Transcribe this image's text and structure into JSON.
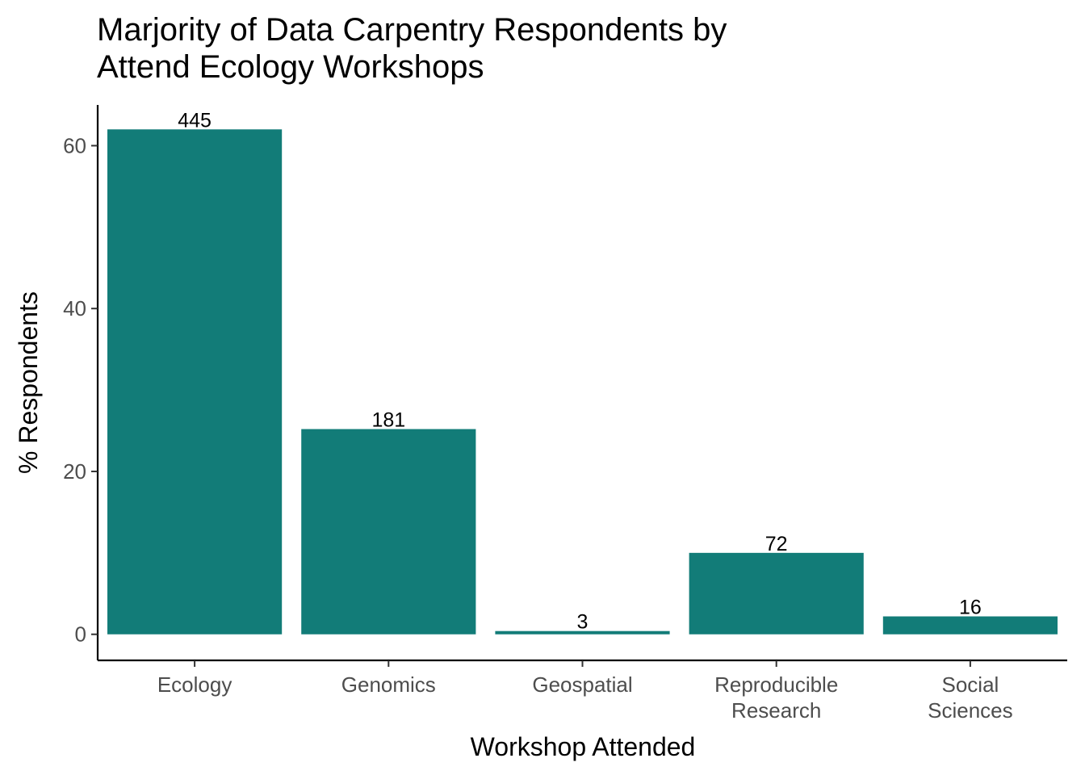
{
  "chart_data": {
    "type": "bar",
    "title_lines": [
      "Marjority of Data Carpentry Respondents by",
      "Attend Ecology Workshops"
    ],
    "xlabel": "Workshop Attended",
    "ylabel": "% Respondents",
    "categories": [
      [
        "Ecology"
      ],
      [
        "Genomics"
      ],
      [
        "Geospatial"
      ],
      [
        "Reproducible",
        "Research"
      ],
      [
        "Social",
        "Sciences"
      ]
    ],
    "values": [
      62.0,
      25.2,
      0.4,
      10.0,
      2.2
    ],
    "data_labels": [
      "445",
      "181",
      "3",
      "72",
      "16"
    ],
    "yticks": [
      0,
      20,
      40,
      60
    ],
    "ylim": [
      -3.2,
      65.0
    ],
    "grid": false,
    "legend": "none",
    "bar_color": "#127C78"
  }
}
